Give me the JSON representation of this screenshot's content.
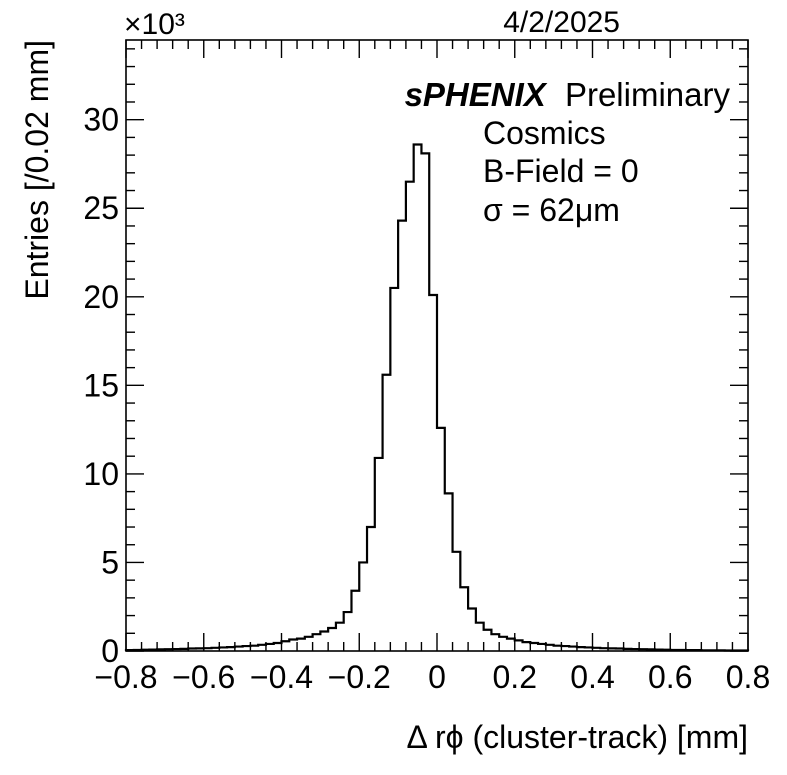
{
  "date_label": "4/2/2025",
  "exponent_label": "×10³",
  "annotations": {
    "experiment": "sPHENIX",
    "status": "Preliminary",
    "line2": "Cosmics",
    "line3": "B-Field = 0",
    "line4": "σ = 62μm"
  },
  "chart_data": {
    "type": "histogram",
    "xlabel": "Δ rϕ (cluster-track) [mm]",
    "ylabel": "Entries [/0.02 mm]",
    "xlim": [
      -0.8,
      0.8
    ],
    "ylim": [
      0,
      34.5
    ],
    "y_unit_multiplier": 1000,
    "x_ticks": [
      "−0.8",
      "−0.6",
      "−0.4",
      "−0.2",
      "0",
      "0.2",
      "0.4",
      "0.6",
      "0.8"
    ],
    "y_ticks": [
      "0",
      "5",
      "10",
      "15",
      "20",
      "25",
      "30"
    ],
    "bin_width": 0.02,
    "bin_edges_start": -0.8,
    "values": [
      0.05,
      0.06,
      0.07,
      0.08,
      0.09,
      0.1,
      0.11,
      0.12,
      0.14,
      0.15,
      0.16,
      0.18,
      0.2,
      0.22,
      0.25,
      0.28,
      0.3,
      0.35,
      0.4,
      0.45,
      0.55,
      0.65,
      0.7,
      0.8,
      0.95,
      1.1,
      1.3,
      1.6,
      2.2,
      3.4,
      5.0,
      7.0,
      10.9,
      15.6,
      20.5,
      24.3,
      26.5,
      28.6,
      28.1,
      20.1,
      12.6,
      8.9,
      5.6,
      3.6,
      2.4,
      1.6,
      1.2,
      0.95,
      0.8,
      0.7,
      0.6,
      0.5,
      0.45,
      0.4,
      0.35,
      0.3,
      0.28,
      0.25,
      0.22,
      0.2,
      0.18,
      0.16,
      0.15,
      0.14,
      0.12,
      0.11,
      0.1,
      0.09,
      0.08,
      0.07,
      0.06,
      0.06,
      0.05,
      0.05,
      0.04,
      0.04,
      0.04,
      0.03,
      0.03,
      0.03
    ],
    "grid": false,
    "legend": "none"
  }
}
